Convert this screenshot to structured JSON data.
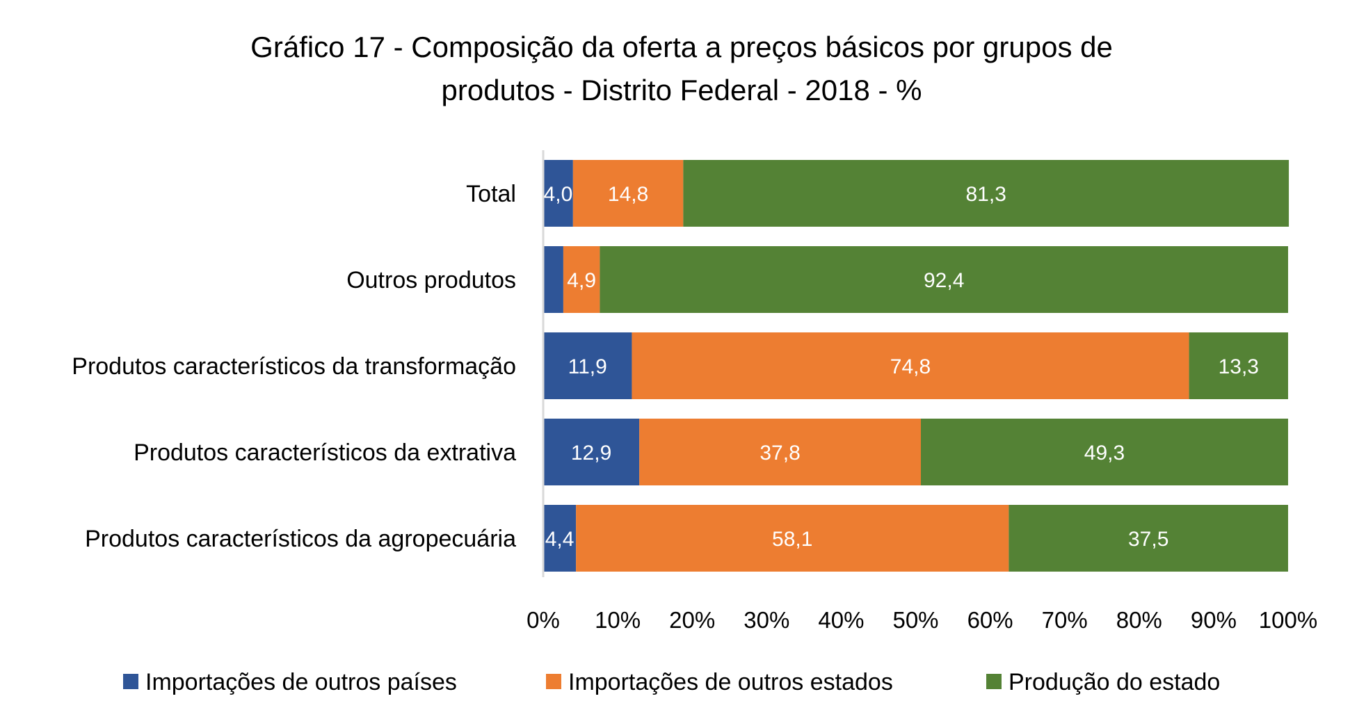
{
  "chart_data": {
    "type": "bar",
    "orientation": "horizontal",
    "stacked": "percent",
    "title": [
      "Gráfico 17 - Composição da oferta a preços básicos por grupos de",
      "produtos - Distrito Federal - 2018 - %"
    ],
    "categories": [
      "Total",
      "Outros produtos",
      "Produtos característicos da transformação",
      "Produtos característicos da extrativa",
      "Produtos característicos da agropecuária"
    ],
    "series": [
      {
        "name": "Importações de outros países",
        "color": "#2F5597",
        "values": [
          4.0,
          2.7,
          11.9,
          12.9,
          4.4
        ],
        "labels": [
          "4,0",
          "",
          "11,9",
          "12,9",
          "4,4"
        ]
      },
      {
        "name": "Importações de outros estados",
        "color": "#ED7D31",
        "values": [
          14.8,
          4.9,
          74.8,
          37.8,
          58.1
        ],
        "labels": [
          "14,8",
          "4,9",
          "74,8",
          "37,8",
          "58,1"
        ]
      },
      {
        "name": "Produção do estado",
        "color": "#548235",
        "values": [
          81.3,
          92.4,
          13.3,
          49.3,
          37.5
        ],
        "labels": [
          "81,3",
          "92,4",
          "13,3",
          "49,3",
          "37,5"
        ]
      }
    ],
    "xticks": [
      "0%",
      "10%",
      "20%",
      "30%",
      "40%",
      "50%",
      "60%",
      "70%",
      "80%",
      "90%",
      "100%"
    ],
    "xlim": [
      0,
      100
    ],
    "grid": false,
    "legend": "bottom"
  }
}
